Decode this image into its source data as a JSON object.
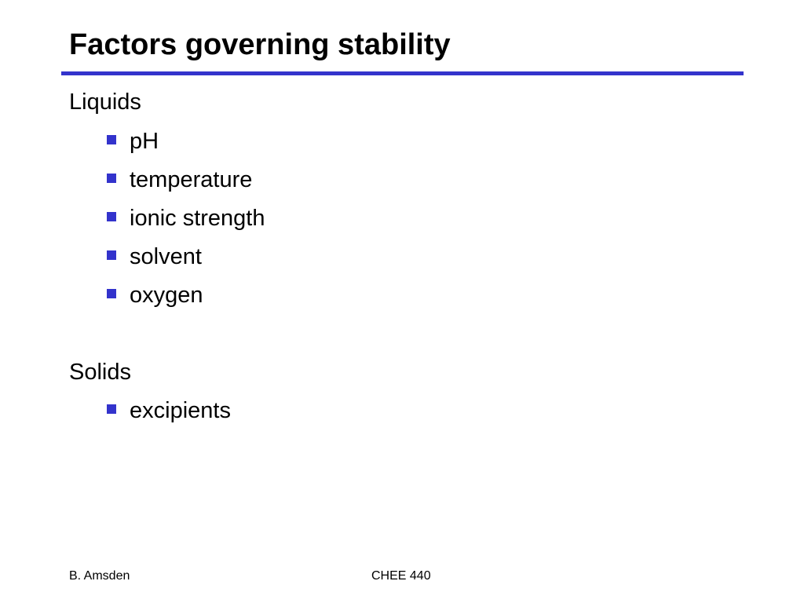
{
  "slide": {
    "title": "Factors governing stability",
    "accent_color": "#3333cc",
    "bullet_icon": "blue-square-bullet"
  },
  "sections": [
    {
      "heading": "Liquids",
      "items": [
        "pH",
        "temperature",
        "ionic strength",
        "solvent",
        "oxygen"
      ]
    },
    {
      "heading": "Solids",
      "items": [
        "excipients"
      ]
    }
  ],
  "footer": {
    "author": "B. Amsden",
    "course": "CHEE 440"
  }
}
